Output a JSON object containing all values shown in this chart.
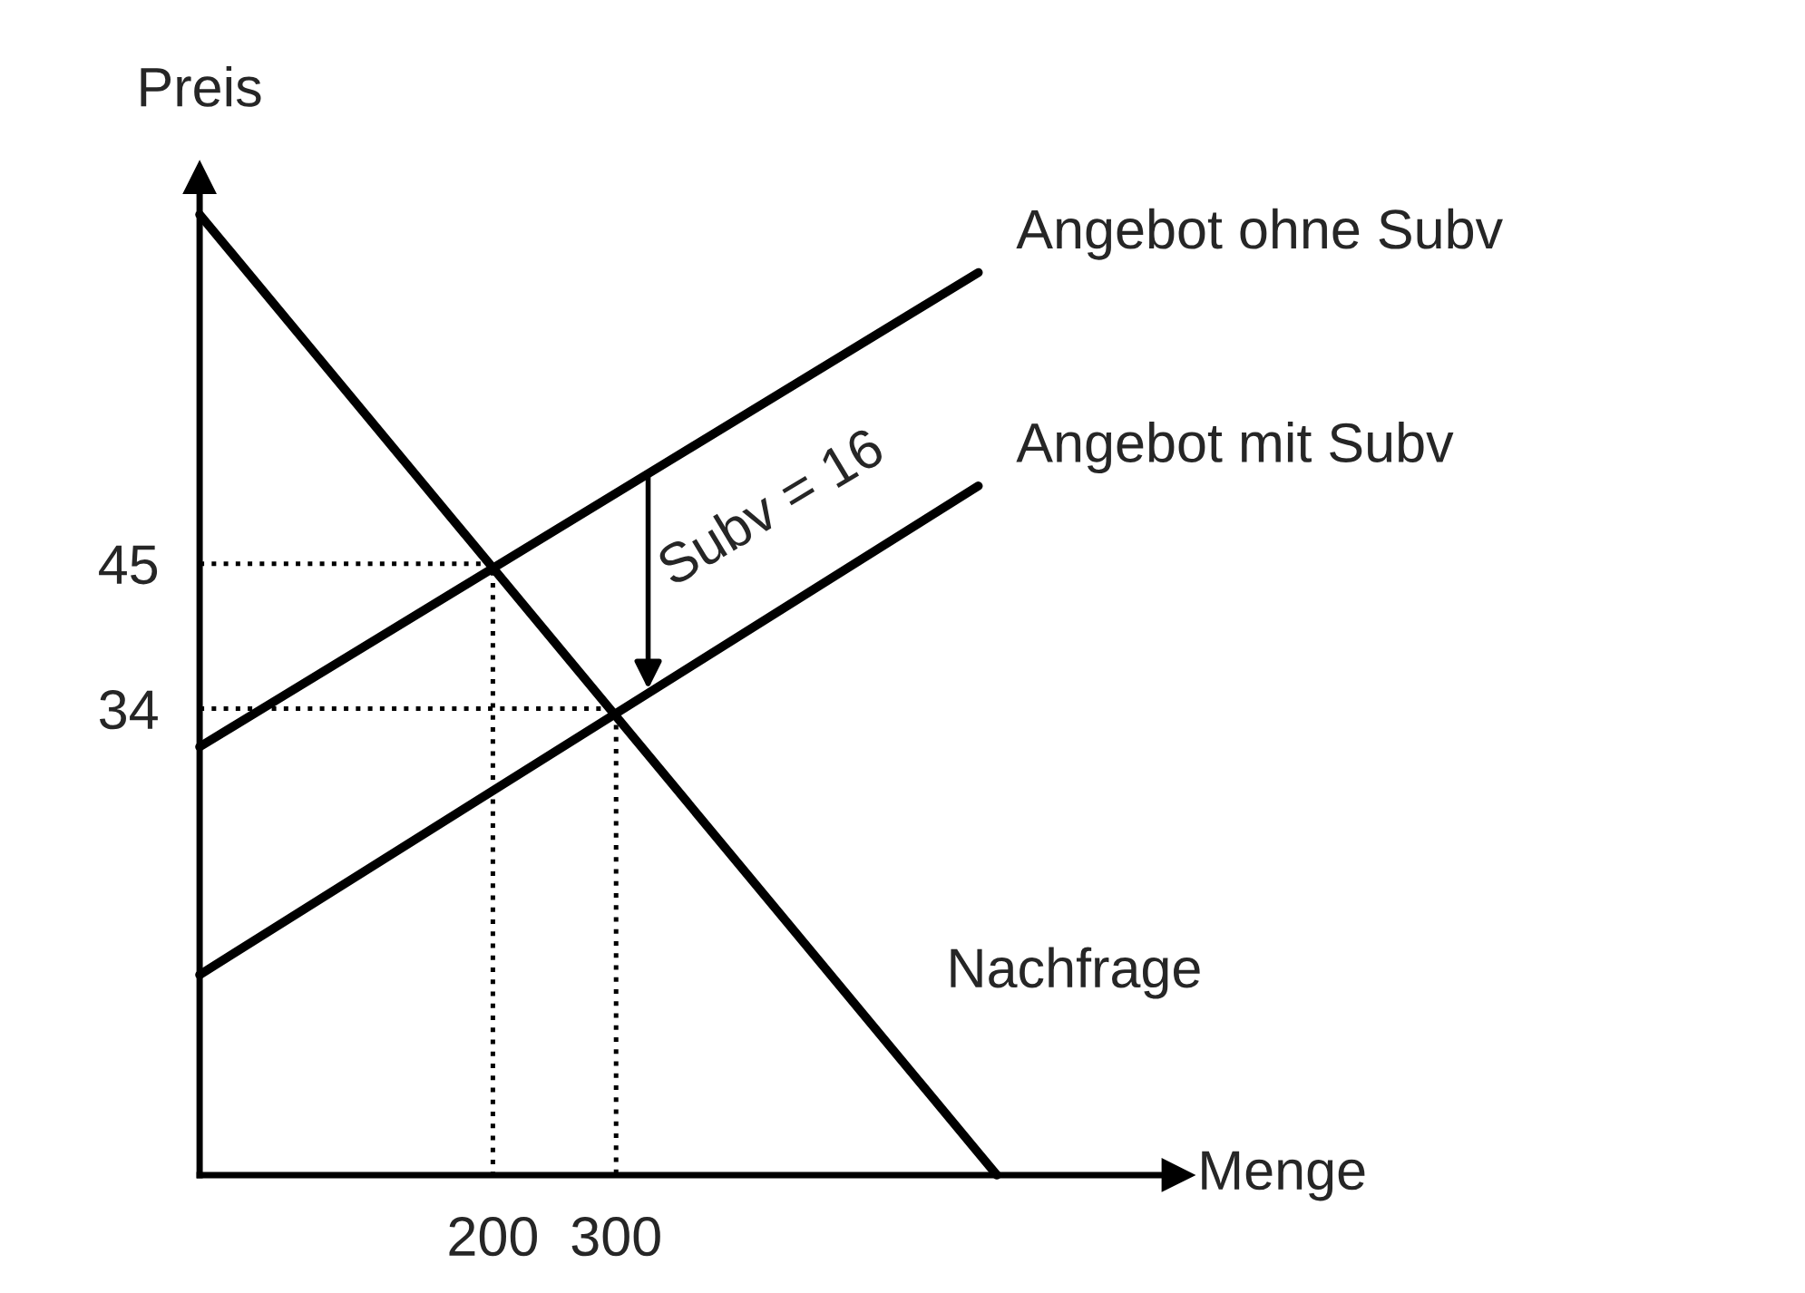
{
  "chart_data": {
    "type": "line",
    "xlabel": "Menge",
    "ylabel": "Preis",
    "xlim": [
      -38,
      756
    ],
    "ylim": [
      -1.4,
      74.3
    ],
    "xticks": [
      200,
      300
    ],
    "yticks": [
      34,
      45
    ],
    "grid": false,
    "marker": "none",
    "series": [
      {
        "name": "Nachfrage",
        "color": "#000000",
        "x": [
          -38,
          609
        ],
        "values": [
          71.5,
          -1.4
        ]
      },
      {
        "name": "Angebot ohne Subv",
        "color": "#000000",
        "x": [
          -38,
          594
        ],
        "values": [
          31.1,
          67.1
        ]
      },
      {
        "name": "Angebot mit Subv",
        "color": "#000000",
        "x": [
          -38,
          594
        ],
        "values": [
          13.8,
          50.9
        ]
      },
      {
        "color": "#000000",
        "line_style": "dotted",
        "x": [
          -38,
          200,
          200
        ],
        "values": [
          45,
          45,
          -1.4
        ]
      },
      {
        "color": "#000000",
        "line_style": "dotted",
        "x": [
          -38,
          300,
          300
        ],
        "values": [
          34,
          34,
          -1.4
        ]
      }
    ],
    "annotations": [
      {
        "text": "Subv = 16",
        "x": 326,
        "y": 52
      }
    ]
  }
}
